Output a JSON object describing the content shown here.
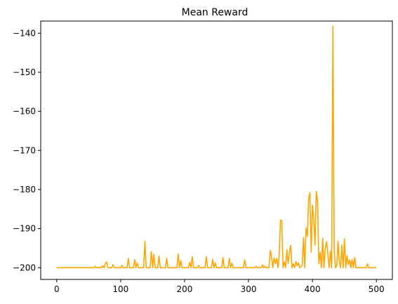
{
  "chart_data": {
    "type": "line",
    "title": "Mean Reward",
    "xlabel": "",
    "ylabel": "",
    "xlim": [
      -25,
      525
    ],
    "ylim": [
      -203,
      -136.9
    ],
    "xticks": [
      0,
      100,
      200,
      300,
      400,
      500
    ],
    "yticks": [
      -200,
      -190,
      -180,
      -170,
      -160,
      -150,
      -140
    ],
    "grid": false,
    "legend": "none",
    "series": [
      {
        "color": "#FFA500",
        "points": [
          [
            0,
            -200
          ],
          [
            58,
            -200
          ],
          [
            60,
            -199.6
          ],
          [
            62,
            -200
          ],
          [
            70,
            -200
          ],
          [
            72,
            -199.5
          ],
          [
            74,
            -200
          ],
          [
            76,
            -199
          ],
          [
            78,
            -198.5
          ],
          [
            80,
            -200
          ],
          [
            86,
            -200
          ],
          [
            88,
            -199.2
          ],
          [
            90,
            -200
          ],
          [
            100,
            -200
          ],
          [
            102,
            -199.4
          ],
          [
            104,
            -200
          ],
          [
            110,
            -200
          ],
          [
            112,
            -197.6
          ],
          [
            114,
            -200
          ],
          [
            120,
            -200
          ],
          [
            122,
            -197.9
          ],
          [
            124,
            -200
          ],
          [
            126,
            -198.8
          ],
          [
            128,
            -200
          ],
          [
            136,
            -200
          ],
          [
            138,
            -193.2
          ],
          [
            140,
            -200
          ],
          [
            146,
            -200
          ],
          [
            148,
            -195.9
          ],
          [
            150,
            -200
          ],
          [
            152,
            -196.6
          ],
          [
            154,
            -200
          ],
          [
            158,
            -200
          ],
          [
            160,
            -197
          ],
          [
            162,
            -200
          ],
          [
            170,
            -200
          ],
          [
            172,
            -197.6
          ],
          [
            174,
            -200
          ],
          [
            188,
            -200
          ],
          [
            190,
            -196.5
          ],
          [
            192,
            -200
          ],
          [
            194,
            -198.2
          ],
          [
            196,
            -200
          ],
          [
            206,
            -200
          ],
          [
            208,
            -198.6
          ],
          [
            210,
            -200
          ],
          [
            212,
            -197.2
          ],
          [
            214,
            -200
          ],
          [
            220,
            -200
          ],
          [
            222,
            -199.4
          ],
          [
            224,
            -200
          ],
          [
            232,
            -200
          ],
          [
            234,
            -197.2
          ],
          [
            236,
            -200
          ],
          [
            242,
            -200
          ],
          [
            244,
            -197.9
          ],
          [
            246,
            -200
          ],
          [
            248,
            -198.8
          ],
          [
            250,
            -200
          ],
          [
            258,
            -200
          ],
          [
            260,
            -197.4
          ],
          [
            262,
            -200
          ],
          [
            268,
            -200
          ],
          [
            270,
            -197.6
          ],
          [
            272,
            -200
          ],
          [
            274,
            -198.8
          ],
          [
            276,
            -200
          ],
          [
            292,
            -200
          ],
          [
            294,
            -198
          ],
          [
            296,
            -200
          ],
          [
            310,
            -200
          ],
          [
            312,
            -199.6
          ],
          [
            314,
            -200
          ],
          [
            320,
            -200
          ],
          [
            322,
            -199.3
          ],
          [
            324,
            -200
          ],
          [
            326,
            -199.6
          ],
          [
            328,
            -200
          ],
          [
            332,
            -200
          ],
          [
            334,
            -195.6
          ],
          [
            336,
            -197.2
          ],
          [
            338,
            -200
          ],
          [
            340,
            -197.5
          ],
          [
            342,
            -199
          ],
          [
            344,
            -197.6
          ],
          [
            346,
            -200
          ],
          [
            348,
            -196.8
          ],
          [
            350,
            -187.8
          ],
          [
            352,
            -188
          ],
          [
            354,
            -200
          ],
          [
            356,
            -198.5
          ],
          [
            358,
            -200
          ],
          [
            360,
            -195.4
          ],
          [
            362,
            -199
          ],
          [
            364,
            -196
          ],
          [
            366,
            -194.3
          ],
          [
            368,
            -200
          ],
          [
            370,
            -199
          ],
          [
            372,
            -200
          ],
          [
            374,
            -198.4
          ],
          [
            376,
            -199.5
          ],
          [
            378,
            -198.8
          ],
          [
            380,
            -200
          ],
          [
            384,
            -199.4
          ],
          [
            386,
            -192.3
          ],
          [
            388,
            -200
          ],
          [
            390,
            -189.8
          ],
          [
            392,
            -192
          ],
          [
            394,
            -182.4
          ],
          [
            396,
            -180.8
          ],
          [
            398,
            -196
          ],
          [
            400,
            -184
          ],
          [
            402,
            -187.4
          ],
          [
            404,
            -194.2
          ],
          [
            406,
            -180.5
          ],
          [
            408,
            -183
          ],
          [
            410,
            -199
          ],
          [
            412,
            -196
          ],
          [
            414,
            -200
          ],
          [
            416,
            -192.5
          ],
          [
            418,
            -200
          ],
          [
            420,
            -195.2
          ],
          [
            422,
            -193.3
          ],
          [
            424,
            -196.2
          ],
          [
            426,
            -200
          ],
          [
            428,
            -195.8
          ],
          [
            430,
            -200
          ],
          [
            432,
            -138.2
          ],
          [
            434,
            -195.4
          ],
          [
            436,
            -200
          ],
          [
            438,
            -199.5
          ],
          [
            440,
            -193.2
          ],
          [
            442,
            -198.4
          ],
          [
            444,
            -200
          ],
          [
            446,
            -194.2
          ],
          [
            448,
            -200
          ],
          [
            450,
            -192.6
          ],
          [
            452,
            -200
          ],
          [
            454,
            -196.9
          ],
          [
            456,
            -199.2
          ],
          [
            458,
            -198
          ],
          [
            460,
            -200
          ],
          [
            462,
            -197.9
          ],
          [
            464,
            -200
          ],
          [
            466,
            -197.4
          ],
          [
            468,
            -200
          ],
          [
            484,
            -200
          ],
          [
            486,
            -199
          ],
          [
            488,
            -200
          ],
          [
            500,
            -200
          ]
        ]
      }
    ]
  }
}
